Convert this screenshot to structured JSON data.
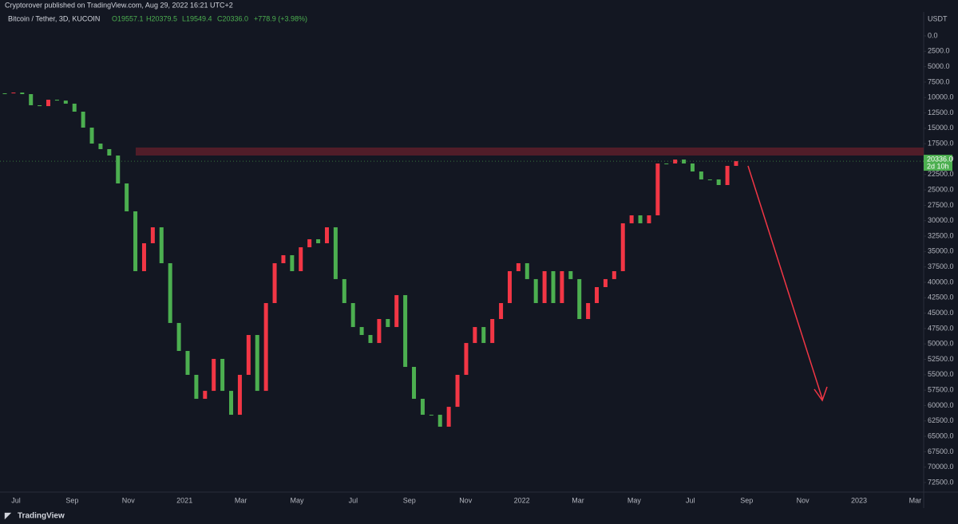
{
  "header": {
    "publisher": "Cryptorover published on TradingView.com, Aug 29, 2022 16:21 UTC+2"
  },
  "footer": {
    "brand": "TradingView"
  },
  "chart_data": {
    "type": "candlestick",
    "legend": {
      "symbol": "Bitcoin / Tether, 3D, KUCOIN",
      "open": "O19557.1",
      "high": "H20379.5",
      "low": "L19549.4",
      "close": "C20336.0",
      "change": "+778.9 (+3.98%)"
    },
    "currency": "USDT",
    "last_price": {
      "value": 20336,
      "label": "20336.0",
      "countdown": "2d 10h"
    },
    "inverted": true,
    "up_color": "#4caf50",
    "down_color": "#f23645",
    "zone": {
      "from": 18125,
      "to": 19420,
      "color": "#5d1f2a"
    },
    "closes": [
      9320,
      9200,
      9450,
      11260,
      11400,
      10360,
      10500,
      11000,
      12300,
      14890,
      17480,
      18380,
      19420,
      23950,
      28480,
      38190,
      33660,
      31070,
      36900,
      46600,
      51140,
      55020,
      58910,
      57620,
      52430,
      57620,
      61500,
      55020,
      48550,
      57620,
      43370,
      36900,
      35600,
      38190,
      34310,
      33010,
      33660,
      31070,
      39480,
      43370,
      47260,
      48550,
      49850,
      45960,
      47260,
      42080,
      53730,
      58910,
      61500,
      61500,
      63440,
      60210,
      55020,
      49850,
      47260,
      49850,
      45960,
      43370,
      38190,
      36900,
      39480,
      43370,
      38190,
      43370,
      38190,
      39480,
      45960,
      43370,
      40780,
      39480,
      38190,
      30420,
      29130,
      30420,
      29130,
      20710,
      20710,
      20070,
      20710,
      22010,
      23300,
      23300,
      24210,
      21100,
      20336
    ],
    "ylim": [
      0,
      72500
    ],
    "yticks": [
      {
        "value": 0,
        "label": "0.0"
      },
      {
        "value": 2500,
        "label": "2500.0"
      },
      {
        "value": 5000,
        "label": "5000.0"
      },
      {
        "value": 7500,
        "label": "7500.0"
      },
      {
        "value": 10000,
        "label": "10000.0"
      },
      {
        "value": 12500,
        "label": "12500.0"
      },
      {
        "value": 15000,
        "label": "15000.0"
      },
      {
        "value": 17500,
        "label": "17500.0"
      },
      {
        "value": 20000,
        "label": "20000.0"
      },
      {
        "value": 22500,
        "label": "22500.0"
      },
      {
        "value": 25000,
        "label": "25000.0"
      },
      {
        "value": 27500,
        "label": "27500.0"
      },
      {
        "value": 30000,
        "label": "30000.0"
      },
      {
        "value": 32500,
        "label": "32500.0"
      },
      {
        "value": 35000,
        "label": "35000.0"
      },
      {
        "value": 37500,
        "label": "37500.0"
      },
      {
        "value": 40000,
        "label": "40000.0"
      },
      {
        "value": 42500,
        "label": "42500.0"
      },
      {
        "value": 45000,
        "label": "45000.0"
      },
      {
        "value": 47500,
        "label": "47500.0"
      },
      {
        "value": 50000,
        "label": "50000.0"
      },
      {
        "value": 52500,
        "label": "52500.0"
      },
      {
        "value": 55000,
        "label": "55000.0"
      },
      {
        "value": 57500,
        "label": "57500.0"
      },
      {
        "value": 60000,
        "label": "60000.0"
      },
      {
        "value": 62500,
        "label": "62500.0"
      },
      {
        "value": 65000,
        "label": "65000.0"
      },
      {
        "value": 67500,
        "label": "67500.0"
      },
      {
        "value": 70000,
        "label": "70000.0"
      },
      {
        "value": 72500,
        "label": "72500.0"
      }
    ],
    "xticks": [
      "Jul",
      "Sep",
      "Nov",
      "2021",
      "Mar",
      "May",
      "Jul",
      "Sep",
      "Nov",
      "2022",
      "Mar",
      "May",
      "Jul",
      "Sep",
      "Nov",
      "2023",
      "Mar"
    ]
  }
}
